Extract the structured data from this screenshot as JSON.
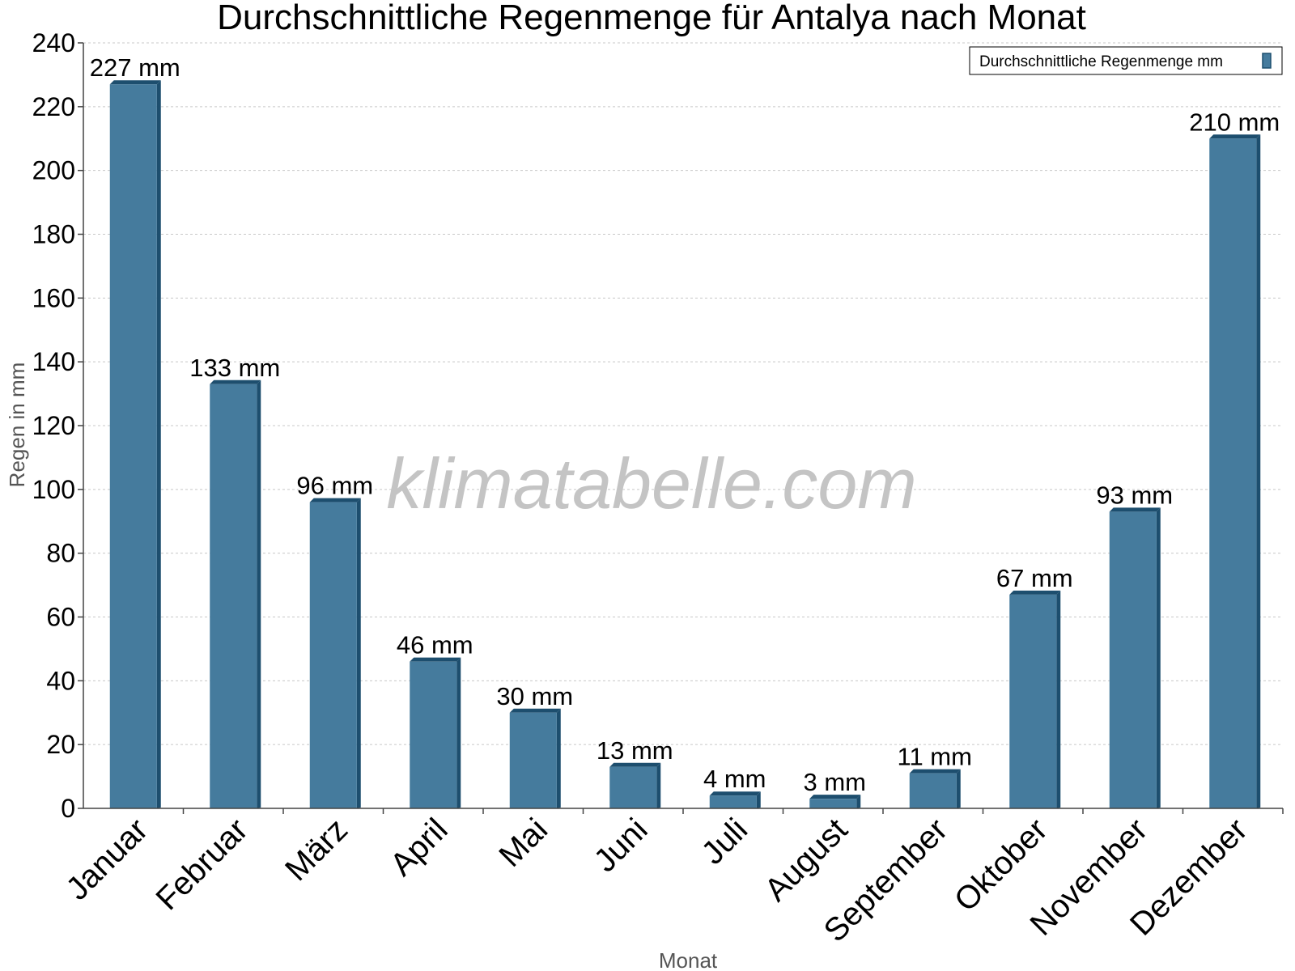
{
  "chart_data": {
    "type": "bar",
    "title": "Durchschnittliche Regenmenge für Antalya nach Monat",
    "xlabel": "Monat",
    "ylabel": "Regen in mm",
    "ylim": [
      0,
      240
    ],
    "yticks": [
      0,
      20,
      40,
      60,
      80,
      100,
      120,
      140,
      160,
      180,
      200,
      220,
      240
    ],
    "grid": true,
    "legend_position": "top-right",
    "categories": [
      "Januar",
      "Februar",
      "März",
      "April",
      "Mai",
      "Juni",
      "Juli",
      "August",
      "September",
      "Oktober",
      "November",
      "Dezember"
    ],
    "series": [
      {
        "name": "Durchschnittliche Regenmenge mm",
        "values": [
          227,
          133,
          96,
          46,
          30,
          13,
          4,
          3,
          11,
          67,
          93,
          210
        ],
        "color": "#457b9d",
        "side_color": "#1d4e6e"
      }
    ],
    "data_labels": [
      "227 mm",
      "133 mm",
      "96 mm",
      "46 mm",
      "30 mm",
      "13 mm",
      "4 mm",
      "3 mm",
      "11 mm",
      "67 mm",
      "93 mm",
      "210 mm"
    ],
    "watermark": "klimatabelle.com"
  }
}
